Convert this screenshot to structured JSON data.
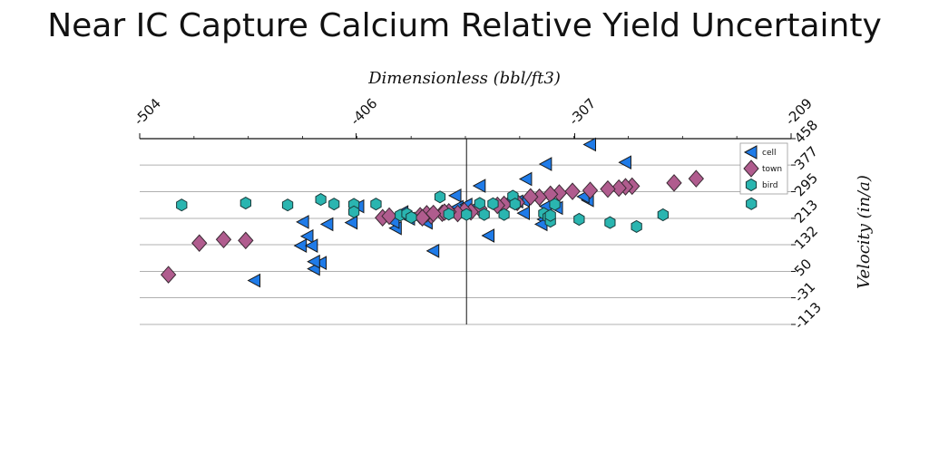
{
  "chart_data": {
    "type": "scatter",
    "title": "Near IC Capture Calcium Relative Yield Uncertainty",
    "xlabel": "Dimensionless (bbl/ft3)",
    "ylabel": "Velocity (in/a)",
    "xlim": [
      -504,
      -209
    ],
    "ylim": [
      -113,
      458
    ],
    "x_ticks": [
      "-504",
      "-406",
      "-307",
      "-209"
    ],
    "y_ticks": [
      "458",
      "377",
      "295",
      "213",
      "132",
      "50",
      "-31",
      "-113"
    ],
    "x_axis_position": "top",
    "y_axis_position": "right",
    "reference_lines": {
      "x": -356,
      "y": 458
    },
    "grid": "horizontal",
    "legend_position": "top-right",
    "series": [
      {
        "name": "cell",
        "marker": "triangle-left",
        "color": "#1f7be8",
        "points": [
          [
            -300,
            440
          ],
          [
            -320,
            380
          ],
          [
            -284,
            385
          ],
          [
            -329,
            334
          ],
          [
            -350,
            313
          ],
          [
            -336,
            270
          ],
          [
            -330,
            268
          ],
          [
            -352,
            248
          ],
          [
            -301,
            269
          ],
          [
            -333,
            265
          ],
          [
            -342,
            245
          ],
          [
            -360,
            248
          ],
          [
            -374,
            200
          ],
          [
            -382,
            212
          ],
          [
            -388,
            183
          ],
          [
            -389,
            202
          ],
          [
            -408,
            200
          ],
          [
            -385,
            232
          ],
          [
            -419,
            195
          ],
          [
            -430,
            202
          ],
          [
            -428,
            158
          ],
          [
            -431,
            129
          ],
          [
            -426,
            129
          ],
          [
            -371,
            113
          ],
          [
            -422,
            76
          ],
          [
            -425,
            58
          ],
          [
            -425,
            80
          ],
          [
            -405,
            250
          ],
          [
            -341,
            245
          ],
          [
            -346,
            160
          ],
          [
            -320,
            250
          ],
          [
            -361,
            283
          ],
          [
            -330,
            229
          ],
          [
            -356,
            255
          ],
          [
            -321,
            210
          ],
          [
            -303,
            280
          ],
          [
            -322,
            195
          ],
          [
            -315,
            245
          ],
          [
            -452,
            22
          ]
        ]
      },
      {
        "name": "town",
        "marker": "diamond",
        "color": "#b05c8e",
        "points": [
          [
            -252,
            335
          ],
          [
            -262,
            322
          ],
          [
            -281,
            312
          ],
          [
            -284,
            310
          ],
          [
            -287,
            306
          ],
          [
            -292,
            303
          ],
          [
            -300,
            299
          ],
          [
            -308,
            296
          ],
          [
            -314,
            291
          ],
          [
            -318,
            287
          ],
          [
            -323,
            278
          ],
          [
            -327,
            279
          ],
          [
            -333,
            262
          ],
          [
            -339,
            256
          ],
          [
            -342,
            253
          ],
          [
            -350,
            243
          ],
          [
            -354,
            233
          ],
          [
            -357,
            236
          ],
          [
            -360,
            228
          ],
          [
            -364,
            233
          ],
          [
            -367,
            229
          ],
          [
            -372,
            221
          ],
          [
            -374,
            227
          ],
          [
            -377,
            221
          ],
          [
            -394,
            215
          ],
          [
            -391,
            220
          ],
          [
            -376,
            215
          ],
          [
            -366,
            232
          ],
          [
            -371,
            228
          ],
          [
            -456,
            145
          ],
          [
            -466,
            148
          ],
          [
            -477,
            137
          ],
          [
            -491,
            40
          ]
        ]
      },
      {
        "name": "bird",
        "marker": "hexagon",
        "color": "#2ab5b0",
        "points": [
          [
            -485,
            254
          ],
          [
            -456,
            260
          ],
          [
            -437,
            254
          ],
          [
            -422,
            271
          ],
          [
            -416,
            257
          ],
          [
            -407,
            256
          ],
          [
            -397,
            257
          ],
          [
            -407,
            233
          ],
          [
            -386,
            223
          ],
          [
            -383,
            227
          ],
          [
            -381,
            216
          ],
          [
            -368,
            279
          ],
          [
            -356,
            225
          ],
          [
            -350,
            259
          ],
          [
            -348,
            225
          ],
          [
            -344,
            258
          ],
          [
            -339,
            225
          ],
          [
            -335,
            281
          ],
          [
            -334,
            257
          ],
          [
            -321,
            228
          ],
          [
            -319,
            217
          ],
          [
            -318,
            204
          ],
          [
            -318,
            222
          ],
          [
            -316,
            256
          ],
          [
            -305,
            210
          ],
          [
            -291,
            200
          ],
          [
            -279,
            188
          ],
          [
            -267,
            224
          ],
          [
            -227,
            258
          ],
          [
            -364,
            226
          ]
        ]
      }
    ]
  }
}
